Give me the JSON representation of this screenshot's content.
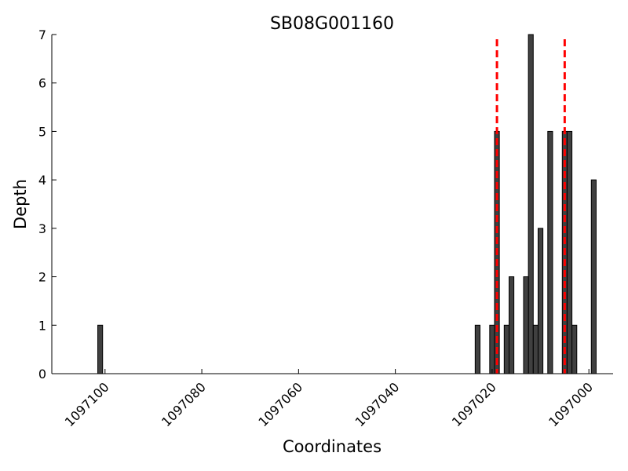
{
  "chart_data": {
    "type": "bar",
    "title": "SB08G001160",
    "xlabel": "Coordinates",
    "ylabel": "Depth",
    "xlim": [
      1097111,
      1096995
    ],
    "ylim": [
      0,
      7
    ],
    "x_inverted": true,
    "bar_width": 1,
    "bar_color": "#404040",
    "bar_edge_color": "#000000",
    "yticks": [
      0,
      1,
      2,
      3,
      4,
      5,
      6,
      7
    ],
    "xticks": [
      1097100,
      1097080,
      1097060,
      1097040,
      1097020,
      1097000
    ],
    "series": [
      {
        "x": [
          1097101,
          1097023,
          1097020,
          1097019,
          1097012,
          1097011,
          1097008,
          1097005,
          1097004,
          1097016,
          1097003,
          1096999,
          1097017,
          1097013,
          1097010
        ],
        "values": [
          1,
          1,
          1,
          5,
          7,
          1,
          5,
          5,
          5,
          2,
          1,
          4,
          1,
          2,
          3
        ]
      }
    ],
    "reference_lines": {
      "color": "#ff0000",
      "style": "dashed",
      "x": [
        1097019,
        1097005
      ]
    }
  }
}
